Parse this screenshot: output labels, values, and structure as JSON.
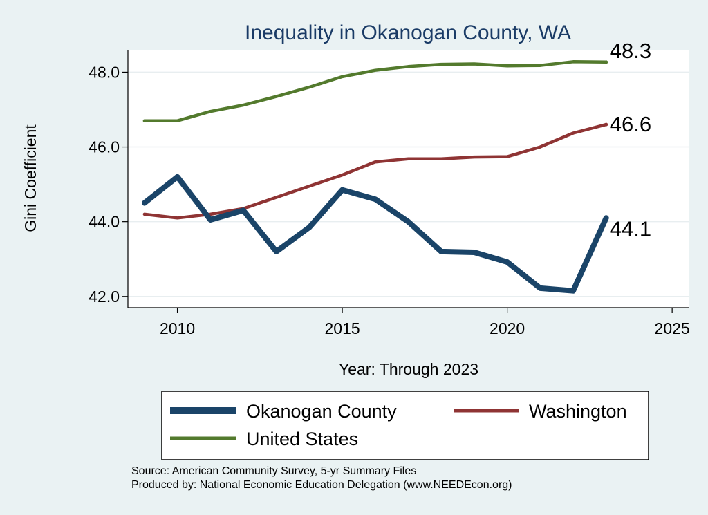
{
  "chart_data": {
    "type": "line",
    "title": "Inequality in Okanogan County, WA",
    "xlabel": "Year: Through 2023",
    "ylabel": "Gini Coefficient",
    "xlim": [
      2008.5,
      2025.5
    ],
    "ylim": [
      41.7,
      48.6
    ],
    "xticks": [
      2010,
      2015,
      2020,
      2025
    ],
    "yticks": [
      42.0,
      44.0,
      46.0,
      48.0
    ],
    "grid": true,
    "legend_position": "bottom",
    "x": [
      2009,
      2010,
      2011,
      2012,
      2013,
      2014,
      2015,
      2016,
      2017,
      2018,
      2019,
      2020,
      2021,
      2022,
      2023
    ],
    "series": [
      {
        "name": "Okanogan County",
        "color": "#1a4468",
        "values": [
          44.5,
          45.2,
          44.05,
          44.3,
          43.2,
          43.85,
          44.85,
          44.6,
          44.0,
          43.2,
          43.18,
          42.92,
          42.22,
          42.15,
          44.1
        ],
        "end_label": "44.1"
      },
      {
        "name": "Washington",
        "color": "#8f3434",
        "values": [
          44.2,
          44.1,
          44.2,
          44.35,
          44.65,
          44.95,
          45.25,
          45.6,
          45.68,
          45.68,
          45.73,
          45.74,
          46.0,
          46.37,
          46.6
        ],
        "end_label": "46.6"
      },
      {
        "name": "United States",
        "color": "#537a2d",
        "values": [
          46.7,
          46.7,
          46.95,
          47.12,
          47.35,
          47.6,
          47.88,
          48.05,
          48.15,
          48.21,
          48.22,
          48.17,
          48.18,
          48.28,
          48.27
        ],
        "end_label": "48.3"
      }
    ]
  },
  "notes": {
    "source": "Source: American Community Survey, 5-yr Summary Files",
    "producer": "Produced by: National Economic Education Delegation (www.NEEDEcon.org)"
  }
}
